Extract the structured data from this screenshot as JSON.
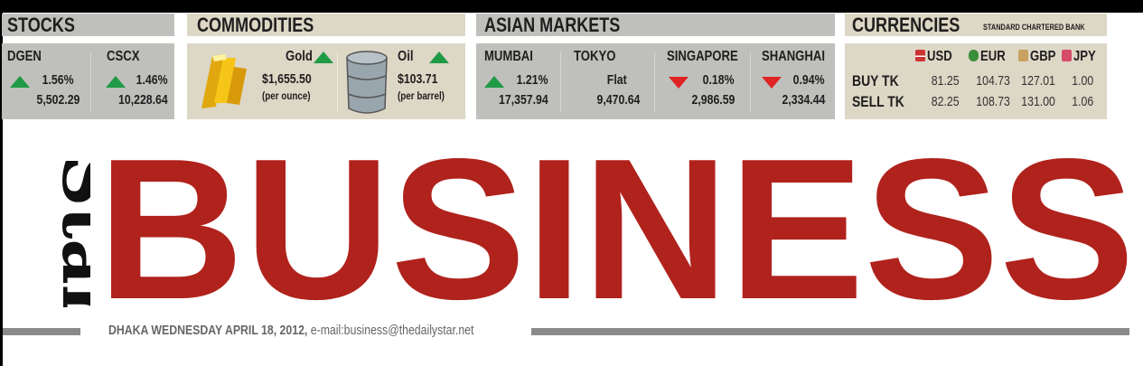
{
  "stocks": {
    "title": "STOCKS",
    "items": [
      {
        "name": "DGEN",
        "change": "1.56%",
        "direction": "up",
        "value": "5,502.29"
      },
      {
        "name": "CSCX",
        "change": "1.46%",
        "direction": "up",
        "value": "10,228.64"
      }
    ]
  },
  "commodities": {
    "title": "COMMODITIES",
    "items": [
      {
        "name": "Gold",
        "direction": "up",
        "price": "$1,655.50",
        "unit": "(per ounce)",
        "icon": "gold-bars-icon"
      },
      {
        "name": "Oil",
        "direction": "up",
        "price": "$103.71",
        "unit": "(per barrel)",
        "icon": "oil-barrel-icon"
      }
    ]
  },
  "asian_markets": {
    "title": "ASIAN MARKETS",
    "items": [
      {
        "name": "MUMBAI",
        "change": "1.21%",
        "direction": "up",
        "value": "17,357.94"
      },
      {
        "name": "TOKYO",
        "change": "Flat",
        "direction": "flat",
        "value": "9,470.64"
      },
      {
        "name": "SINGAPORE",
        "change": "0.18%",
        "direction": "down",
        "value": "2,986.59"
      },
      {
        "name": "SHANGHAI",
        "change": "0.94%",
        "direction": "down",
        "value": "2,334.44"
      }
    ]
  },
  "currencies": {
    "title": "CURRENCIES",
    "source": "STANDARD CHARTERED BANK",
    "columns": [
      "USD",
      "EUR",
      "GBP",
      "JPY"
    ],
    "rows": [
      {
        "label": "BUY TK",
        "values": [
          "81.25",
          "104.73",
          "127.01",
          "1.00"
        ]
      },
      {
        "label": "SELL TK",
        "values": [
          "82.25",
          "108.73",
          "131.00",
          "1.06"
        ]
      }
    ]
  },
  "colors": {
    "up": "#1f9a45",
    "down": "#e02424",
    "masthead": "#b0221c",
    "gray_panel": "#bfc0bc",
    "beige_panel": "#ddd7c6"
  },
  "masthead": {
    "logo": "Star",
    "title": "BUSINESS"
  },
  "footer": {
    "dateline": "DHAKA WEDNESDAY APRIL 18, 2012,",
    "email": " e-mail:business@thedailystar.net"
  }
}
